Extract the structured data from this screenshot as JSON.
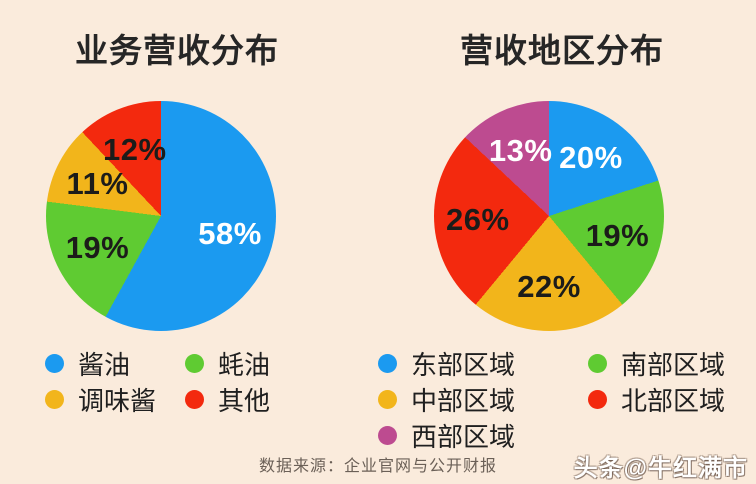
{
  "page": {
    "background_color": "#faebdc",
    "source_note": "数据来源：企业官网与公开财报",
    "watermark": "头条@牛红满市"
  },
  "chart_data": [
    {
      "type": "pie",
      "title": "业务营收分布",
      "unit": "%",
      "start_angle_deg": 0,
      "direction": "clockwise",
      "label_position": "inside",
      "legend_position": "bottom",
      "legend_columns": 2,
      "slices": [
        {
          "label": "酱油",
          "value": 58,
          "color": "#1b9af0",
          "label_color": "#ffffff"
        },
        {
          "label": "蚝油",
          "value": 19,
          "color": "#5fcb32",
          "label_color": "#1c1c1a"
        },
        {
          "label": "调味酱",
          "value": 11,
          "color": "#f2b51b",
          "label_color": "#1c1c1a"
        },
        {
          "label": "其他",
          "value": 12,
          "color": "#f3290e",
          "label_color": "#1c1c1a"
        }
      ]
    },
    {
      "type": "pie",
      "title": "营收地区分布",
      "unit": "%",
      "start_angle_deg": 0,
      "direction": "clockwise",
      "label_position": "inside",
      "legend_position": "bottom",
      "legend_columns": 2,
      "slices": [
        {
          "label": "东部区域",
          "value": 20,
          "color": "#1b9af0",
          "label_color": "#ffffff"
        },
        {
          "label": "南部区域",
          "value": 19,
          "color": "#5fcb32",
          "label_color": "#1c1c1a"
        },
        {
          "label": "中部区域",
          "value": 22,
          "color": "#f2b51b",
          "label_color": "#1c1c1a"
        },
        {
          "label": "北部区域",
          "value": 26,
          "color": "#f3290e",
          "label_color": "#1c1c1a"
        },
        {
          "label": "西部区域",
          "value": 13,
          "color": "#bd4b90",
          "label_color": "#ffffff"
        }
      ]
    }
  ]
}
